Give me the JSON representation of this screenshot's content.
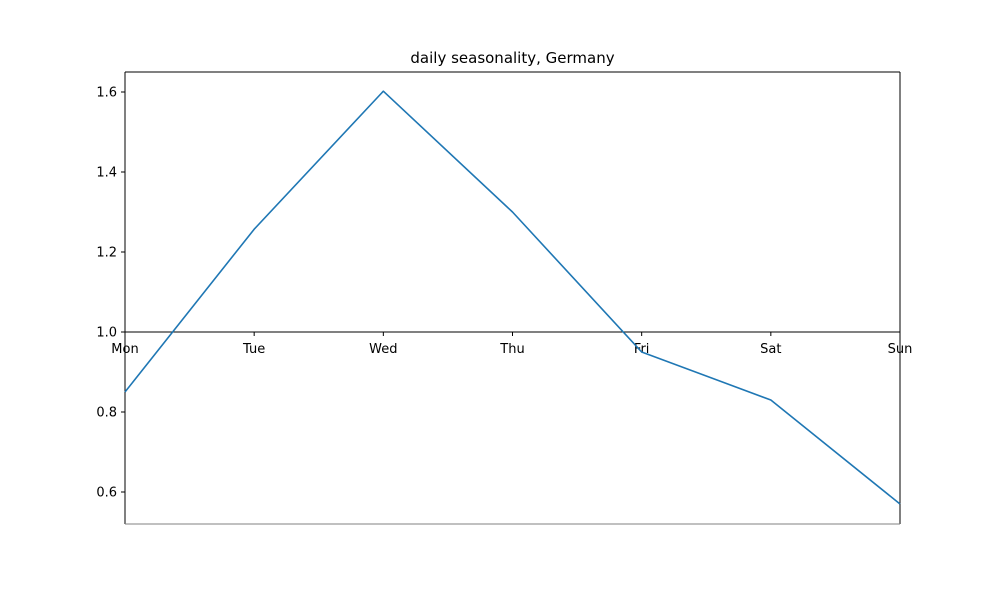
{
  "chart_data": {
    "type": "line",
    "title": "daily seasonality, Germany",
    "xlabel": "",
    "ylabel": "",
    "categories": [
      "Mon",
      "Tue",
      "Wed",
      "Thu",
      "Fri",
      "Sat",
      "Sun"
    ],
    "series": [
      {
        "values": [
          0.85,
          1.257,
          1.602,
          1.3,
          0.95,
          0.83,
          0.57
        ]
      }
    ],
    "ylim": [
      0.52,
      1.65
    ],
    "yticks": [
      0.6,
      0.8,
      1.0,
      1.2,
      1.4,
      1.6
    ],
    "ytick_labels": [
      "0.6",
      "0.8",
      "1.0",
      "1.2",
      "1.4",
      "1.6"
    ],
    "x_axis_position_y": 1.0,
    "grid": false,
    "legend": "none",
    "colors": {
      "line": "#1f77b4",
      "axes": "#000000",
      "bottom_spine": "#808080"
    }
  }
}
